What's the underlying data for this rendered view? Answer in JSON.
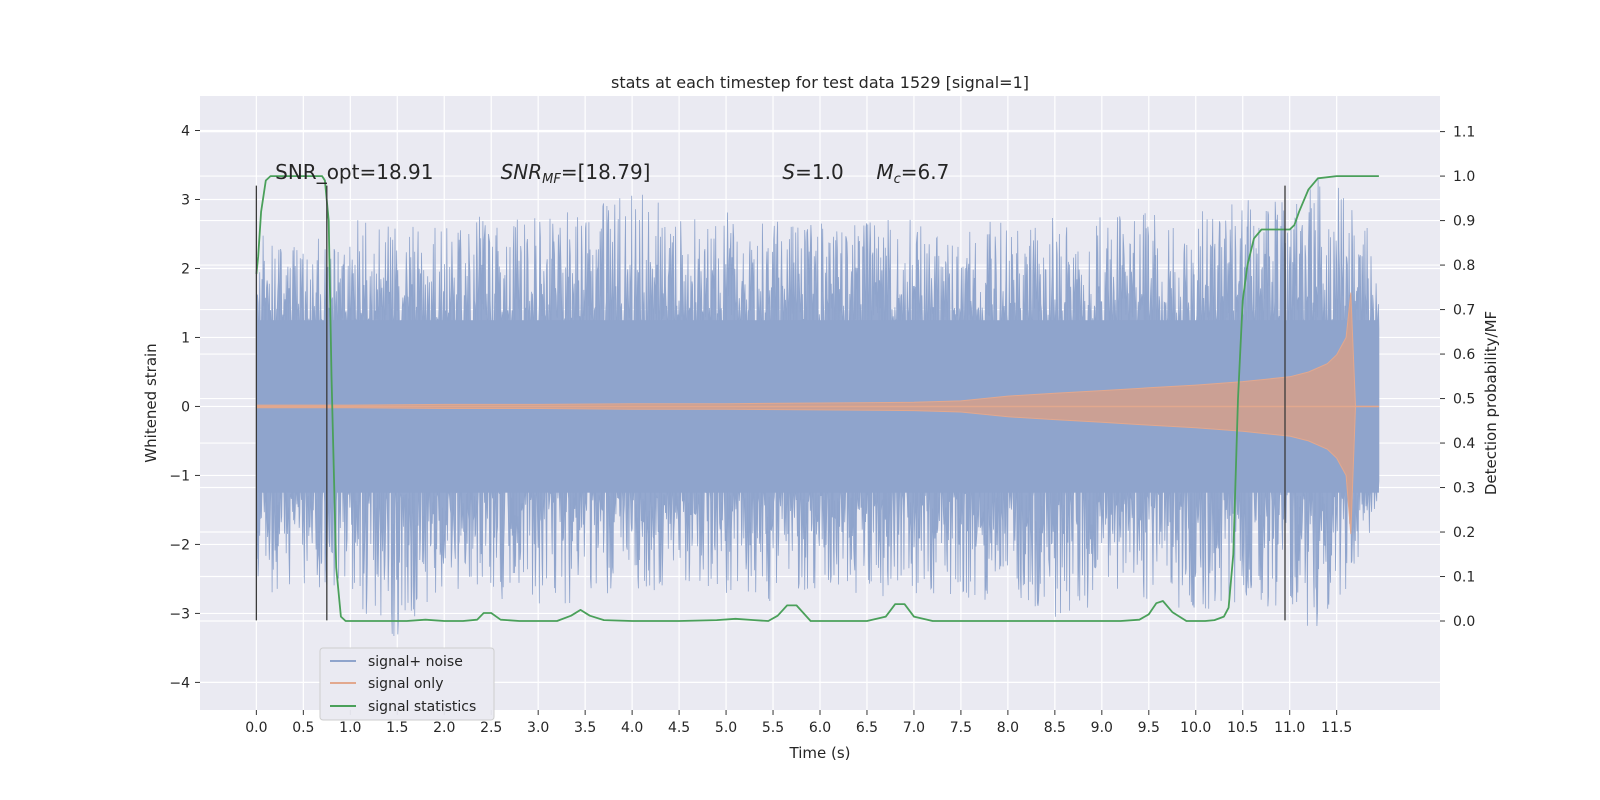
{
  "chart_data": {
    "type": "line",
    "title": "stats at each timestep for test data 1529 [signal=1]",
    "xlabel": "Time (s)",
    "ylabel": "Whitened strain",
    "ylabel_right": "Detection probability/MF",
    "xlim": [
      -0.6,
      12.6
    ],
    "ylim": [
      -4.4,
      4.5
    ],
    "ylim_right": [
      -0.2,
      1.18
    ],
    "x_ticks": [
      0.0,
      0.5,
      1.0,
      1.5,
      2.0,
      2.5,
      3.0,
      3.5,
      4.0,
      4.5,
      5.0,
      5.5,
      6.0,
      6.5,
      7.0,
      7.5,
      8.0,
      8.5,
      9.0,
      9.5,
      10.0,
      10.5,
      11.0,
      11.5
    ],
    "x_tick_labels": [
      "0.0",
      "0.5",
      "1.0",
      "1.5",
      "2.0",
      "2.5",
      "3.0",
      "3.5",
      "4.0",
      "4.5",
      "5.0",
      "5.5",
      "6.0",
      "6.5",
      "7.0",
      "7.5",
      "8.0",
      "8.5",
      "9.0",
      "9.5",
      "10.0",
      "10.5",
      "11.0",
      "11.5"
    ],
    "y_ticks": [
      -4,
      -3,
      -2,
      -1,
      0,
      1,
      2,
      3,
      4
    ],
    "y_tick_labels": [
      "−4",
      "−3",
      "−2",
      "−1",
      "0",
      "1",
      "2",
      "3",
      "4"
    ],
    "y_right_ticks": [
      0.0,
      0.1,
      0.2,
      0.3,
      0.4,
      0.5,
      0.6,
      0.7,
      0.8,
      0.9,
      1.0,
      1.1
    ],
    "y_right_tick_labels": [
      "0.0",
      "0.1",
      "0.2",
      "0.3",
      "0.4",
      "0.5",
      "0.6",
      "0.7",
      "0.8",
      "0.9",
      "1.0",
      "1.1"
    ],
    "grid": true,
    "legend_position": "bottom-left",
    "annotations": [
      {
        "label": "SNR_opt=18.91",
        "x": 0.2,
        "y": 3.3
      },
      {
        "label": "SNR_MF=[18.79]",
        "x": 2.6,
        "y": 3.3
      },
      {
        "label": "S=1.0",
        "x": 5.6,
        "y": 3.3
      },
      {
        "label": "M_c=6.7",
        "x": 6.6,
        "y": 3.3
      }
    ],
    "vertical_markers": [
      0.0,
      0.75,
      10.95
    ],
    "series": [
      {
        "name": "signal+ noise",
        "color": "#8fa4cc",
        "axis": "left",
        "kind": "noise_band",
        "x_range": [
          0.0,
          11.95
        ],
        "envelope": {
          "x": [
            0,
            0.5,
            1,
            1.5,
            2,
            2.5,
            3,
            3.5,
            4,
            4.5,
            5,
            5.5,
            6,
            6.5,
            7,
            7.5,
            8,
            8.5,
            9,
            9.5,
            10,
            10.5,
            11,
            11.5,
            11.95
          ],
          "upper": [
            2.5,
            2.4,
            2.7,
            2.6,
            2.7,
            2.8,
            2.7,
            2.8,
            3.3,
            2.8,
            2.8,
            2.7,
            2.6,
            2.7,
            2.8,
            2.6,
            2.7,
            2.8,
            2.8,
            2.9,
            2.9,
            3.0,
            3.1,
            3.5,
            2.3
          ],
          "lower": [
            -3.1,
            -2.6,
            -2.7,
            -3.5,
            -2.6,
            -2.8,
            -2.9,
            -2.8,
            -2.7,
            -2.6,
            -2.7,
            -2.8,
            -2.6,
            -2.7,
            -2.7,
            -2.9,
            -2.8,
            -3.2,
            -2.7,
            -2.8,
            -3.0,
            -2.9,
            -3.0,
            -3.5,
            -1.5
          ]
        }
      },
      {
        "name": "signal only",
        "color": "#d6a08a",
        "axis": "left",
        "kind": "chirp_envelope",
        "x": [
          0,
          1,
          2,
          3,
          4,
          5,
          6,
          7,
          7.5,
          8,
          8.5,
          9,
          9.5,
          10,
          10.5,
          11,
          11.2,
          11.4,
          11.5,
          11.6,
          11.65,
          11.7,
          11.95
        ],
        "upper": [
          0.02,
          0.02,
          0.03,
          0.03,
          0.04,
          0.04,
          0.05,
          0.06,
          0.08,
          0.15,
          0.19,
          0.23,
          0.27,
          0.31,
          0.36,
          0.43,
          0.5,
          0.62,
          0.75,
          1.0,
          1.65,
          0.0,
          0.0
        ],
        "lower": [
          -0.02,
          -0.02,
          -0.03,
          -0.03,
          -0.04,
          -0.04,
          -0.05,
          -0.06,
          -0.08,
          -0.15,
          -0.19,
          -0.23,
          -0.27,
          -0.31,
          -0.36,
          -0.43,
          -0.5,
          -0.62,
          -0.75,
          -1.0,
          -1.85,
          0.0,
          0.0
        ]
      },
      {
        "name": "signal statistics",
        "color": "#4aa05a",
        "axis": "right",
        "kind": "line",
        "x": [
          0.0,
          0.02,
          0.05,
          0.1,
          0.15,
          0.2,
          0.3,
          0.4,
          0.5,
          0.6,
          0.65,
          0.7,
          0.73,
          0.77,
          0.8,
          0.85,
          0.9,
          0.95,
          1.0,
          1.1,
          1.2,
          1.4,
          1.6,
          1.8,
          2.0,
          2.2,
          2.35,
          2.42,
          2.5,
          2.6,
          2.8,
          3.0,
          3.2,
          3.35,
          3.45,
          3.55,
          3.7,
          4.0,
          4.5,
          4.9,
          5.1,
          5.3,
          5.45,
          5.55,
          5.65,
          5.75,
          5.9,
          6.2,
          6.5,
          6.7,
          6.8,
          6.9,
          7.0,
          7.2,
          7.6,
          8.0,
          8.4,
          8.8,
          9.2,
          9.4,
          9.5,
          9.58,
          9.65,
          9.75,
          9.9,
          10.1,
          10.2,
          10.3,
          10.35,
          10.4,
          10.45,
          10.5,
          10.55,
          10.62,
          10.7,
          10.8,
          10.9,
          11.0,
          11.05,
          11.1,
          11.2,
          11.3,
          11.5,
          11.7,
          11.95
        ],
        "y": [
          0.78,
          0.82,
          0.92,
          0.99,
          1.0,
          1.0,
          1.0,
          1.0,
          1.0,
          1.0,
          1.0,
          1.0,
          0.99,
          0.9,
          0.55,
          0.12,
          0.01,
          0.0,
          0.0,
          0.0,
          0.0,
          0.0,
          0.0,
          0.003,
          0.0,
          0.0,
          0.003,
          0.018,
          0.018,
          0.003,
          0.0,
          0.0,
          0.0,
          0.012,
          0.025,
          0.012,
          0.002,
          0.0,
          0.0,
          0.002,
          0.005,
          0.002,
          0.0,
          0.012,
          0.035,
          0.035,
          0.0,
          0.0,
          0.0,
          0.01,
          0.038,
          0.038,
          0.01,
          0.0,
          0.0,
          0.0,
          0.0,
          0.0,
          0.0,
          0.003,
          0.015,
          0.04,
          0.045,
          0.02,
          0.0,
          0.0,
          0.002,
          0.01,
          0.03,
          0.15,
          0.5,
          0.72,
          0.8,
          0.86,
          0.88,
          0.88,
          0.88,
          0.88,
          0.89,
          0.92,
          0.97,
          0.995,
          1.0,
          1.0,
          1.0
        ]
      }
    ]
  }
}
